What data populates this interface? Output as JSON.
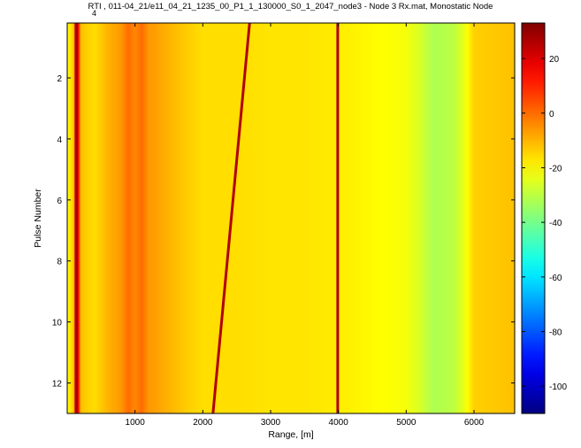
{
  "chart_data": {
    "type": "heatmap",
    "title": "RTI , 011-04_21/e11_04_21_1235_00_P1_1_130000_S0_1_2047_node3 - Node 3 Rx.mat, Monostatic Node",
    "title_overlay": "4",
    "xlabel": "Range, [m]",
    "ylabel": "Pulse Number",
    "xlim": [
      0,
      6600
    ],
    "ylim": [
      0.2,
      13
    ],
    "y_direction": "reversed",
    "xticks": [
      1000,
      2000,
      3000,
      4000,
      5000,
      6000
    ],
    "xtick_labels": [
      "1000",
      "2000",
      "3000",
      "4000",
      "5000",
      "6000"
    ],
    "yticks": [
      2,
      4,
      6,
      8,
      10,
      12
    ],
    "ytick_labels": [
      "2",
      "4",
      "6",
      "8",
      "10",
      "12"
    ],
    "colorbar": {
      "colormap": "jet",
      "clim": [
        -110,
        33
      ],
      "ticks": [
        20,
        0,
        -20,
        -40,
        -60,
        -80,
        -100
      ],
      "tick_labels": [
        "20",
        "0",
        "-20",
        "-40",
        "-60",
        "-80",
        "-100"
      ]
    },
    "range_intensity_profile": {
      "range_m": [
        0,
        100,
        150,
        200,
        400,
        600,
        800,
        900,
        1000,
        1100,
        1200,
        1500,
        1800,
        2000,
        2500,
        3000,
        3500,
        4000,
        4500,
        5000,
        5200,
        5400,
        5700,
        5850,
        6000,
        6600
      ],
      "value_db": [
        -22,
        -12,
        26,
        -12,
        -16,
        -10,
        -6,
        0,
        -4,
        0,
        -6,
        -10,
        -14,
        -16,
        -16,
        -17,
        -17,
        -18,
        -20,
        -22,
        -26,
        -32,
        -30,
        -24,
        -14,
        -12
      ]
    },
    "vertical_returns": [
      {
        "range_m": 130,
        "value_db": 26
      },
      {
        "range_m": 3990,
        "value_db": 26
      }
    ],
    "moving_target": {
      "value_db": 26,
      "points": [
        {
          "pulse": 0.2,
          "range_m": 2690
        },
        {
          "pulse": 13,
          "range_m": 2150
        }
      ]
    }
  }
}
